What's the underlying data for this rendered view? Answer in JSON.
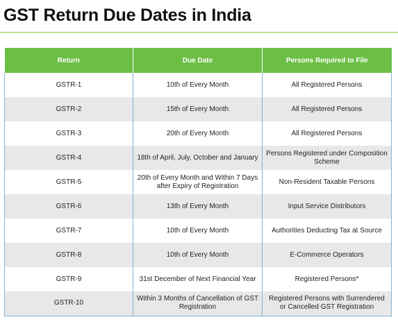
{
  "title": "GST Return Due Dates in India",
  "colors": {
    "header_green": "#6cbe45",
    "title_rule": "#8dc63f",
    "row_alt": "#e8e8ea",
    "cell_border": "#7fb3d5"
  },
  "table": {
    "headers": [
      "Return",
      "Due Date",
      "Persons Required to File"
    ],
    "rows": [
      {
        "return": "GSTR-1",
        "due_date": "10th of Every Month",
        "persons": "All Registered Persons"
      },
      {
        "return": "GSTR-2",
        "due_date": "15th of Every Month",
        "persons": "All Registered Persons"
      },
      {
        "return": "GSTR-3",
        "due_date": "20th of Every Month",
        "persons": "All Registered Persons"
      },
      {
        "return": "GSTR-4",
        "due_date": "18th of April, July, October and January",
        "persons": "Persons Registered under Composition Scheme"
      },
      {
        "return": "GSTR-5",
        "due_date": "20th of Every Month and Within 7 Days after Expiry of Registration",
        "persons": "Non-Resident Taxable Persons"
      },
      {
        "return": "GSTR-6",
        "due_date": "13th of Every Month",
        "persons": "Input Service Distributors"
      },
      {
        "return": "GSTR-7",
        "due_date": "10th of Every Month",
        "persons": "Authorities Deducting Tax at Source"
      },
      {
        "return": "GSTR-8",
        "due_date": "10th of Every Month",
        "persons": "E-Commerce Operators"
      },
      {
        "return": "GSTR-9",
        "due_date": "31st December of Next Financial Year",
        "persons": "Registered Persons*"
      },
      {
        "return": "GSTR-10",
        "due_date": "Within 3 Months of Cancellation of GST Registration",
        "persons": "Registered Persons with Surrendered or Cancelled GST Registration"
      }
    ]
  }
}
